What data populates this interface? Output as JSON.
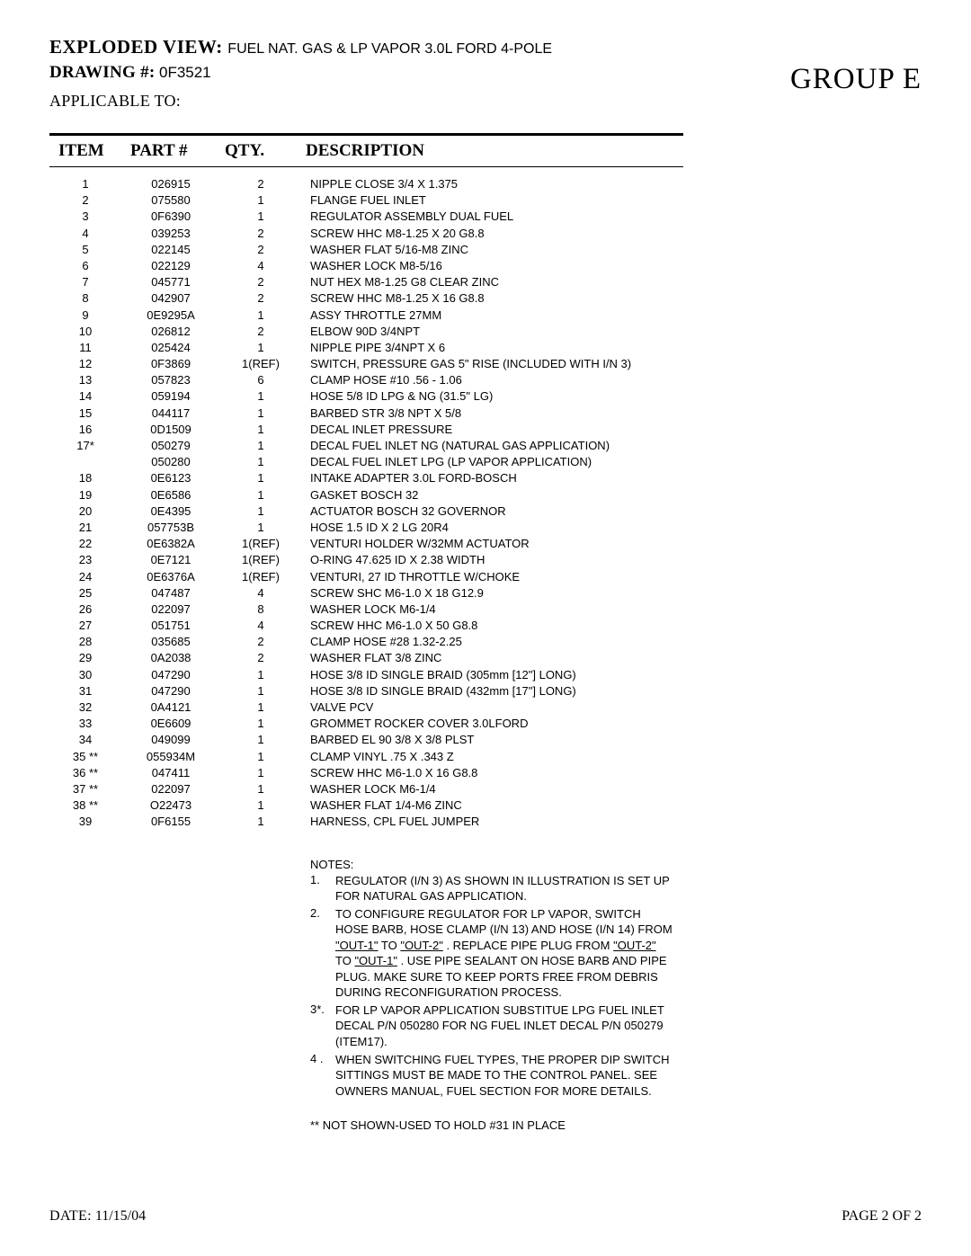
{
  "header": {
    "exploded_label": "EXPLODED VIEW:",
    "exploded_value": "FUEL NAT. GAS & LP VAPOR 3.0L FORD 4-POLE",
    "drawing_label": "DRAWING #:",
    "drawing_value": "0F3521",
    "applicable_label": "APPLICABLE TO:",
    "group_label": "GROUP  E"
  },
  "table": {
    "headers": {
      "item": "ITEM",
      "part": "PART #",
      "qty": "QTY.",
      "desc": "DESCRIPTION"
    },
    "rows": [
      {
        "item": "1",
        "part": "026915",
        "qty": "2",
        "desc": "NIPPLE CLOSE 3/4 X 1.375"
      },
      {
        "item": "2",
        "part": "075580",
        "qty": "1",
        "desc": "FLANGE FUEL INLET"
      },
      {
        "item": "3",
        "part": "0F6390",
        "qty": "1",
        "desc": "REGULATOR ASSEMBLY DUAL FUEL"
      },
      {
        "item": "4",
        "part": "039253",
        "qty": "2",
        "desc": "SCREW HHC M8-1.25 X 20 G8.8"
      },
      {
        "item": "5",
        "part": "022145",
        "qty": "2",
        "desc": "WASHER FLAT 5/16-M8 ZINC"
      },
      {
        "item": "6",
        "part": "022129",
        "qty": "4",
        "desc": "WASHER LOCK M8-5/16"
      },
      {
        "item": "7",
        "part": "045771",
        "qty": "2",
        "desc": "NUT HEX M8-1.25 G8 CLEAR ZINC"
      },
      {
        "item": "8",
        "part": "042907",
        "qty": "2",
        "desc": "SCREW HHC M8-1.25 X 16 G8.8"
      },
      {
        "item": "9",
        "part": "0E9295A",
        "qty": "1",
        "desc": "ASSY THROTTLE 27MM"
      },
      {
        "item": "10",
        "part": "026812",
        "qty": "2",
        "desc": "ELBOW 90D 3/4NPT"
      },
      {
        "item": "11",
        "part": "025424",
        "qty": "1",
        "desc": "NIPPLE PIPE 3/4NPT X 6"
      },
      {
        "item": "12",
        "part": "0F3869",
        "qty": "1(REF)",
        "desc": "SWITCH, PRESSURE GAS 5\"  RISE (INCLUDED WITH I/N 3)"
      },
      {
        "item": "13",
        "part": "057823",
        "qty": "6",
        "desc": "CLAMP HOSE #10 .56 - 1.06"
      },
      {
        "item": "14",
        "part": "059194",
        "qty": "1",
        "desc": "HOSE 5/8 ID LPG & NG (31.5\" LG)"
      },
      {
        "item": "15",
        "part": "044117",
        "qty": "1",
        "desc": "BARBED STR 3/8 NPT X 5/8"
      },
      {
        "item": "16",
        "part": "0D1509",
        "qty": "1",
        "desc": "DECAL INLET PRESSURE"
      },
      {
        "item": "17*",
        "part": "050279",
        "qty": "1",
        "desc": "DECAL FUEL INLET NG (NATURAL GAS APPLICATION)"
      },
      {
        "item": "",
        "part": "050280",
        "qty": "1",
        "desc": "DECAL FUEL INLET LPG (LP VAPOR APPLICATION)"
      },
      {
        "item": "18",
        "part": "0E6123",
        "qty": "1",
        "desc": "INTAKE ADAPTER 3.0L FORD-BOSCH"
      },
      {
        "item": "19",
        "part": "0E6586",
        "qty": "1",
        "desc": "GASKET BOSCH 32"
      },
      {
        "item": "20",
        "part": "0E4395",
        "qty": "1",
        "desc": "ACTUATOR BOSCH 32 GOVERNOR"
      },
      {
        "item": "21",
        "part": "057753B",
        "qty": "1",
        "desc": "HOSE 1.5 ID X 2 LG 20R4"
      },
      {
        "item": "22",
        "part": "0E6382A",
        "qty": "1(REF)",
        "desc": "VENTURI HOLDER W/32MM ACTUATOR"
      },
      {
        "item": "23",
        "part": "0E7121",
        "qty": "1(REF)",
        "desc": "O-RING 47.625 ID X 2.38 WIDTH"
      },
      {
        "item": "24",
        "part": "0E6376A",
        "qty": "1(REF)",
        "desc": "VENTURI, 27 ID THROTTLE W/CHOKE"
      },
      {
        "item": "25",
        "part": "047487",
        "qty": "4",
        "desc": "SCREW SHC M6-1.0 X 18 G12.9"
      },
      {
        "item": "26",
        "part": "022097",
        "qty": "8",
        "desc": "WASHER LOCK M6-1/4"
      },
      {
        "item": "27",
        "part": "051751",
        "qty": "4",
        "desc": "SCREW HHC M6-1.0 X 50 G8.8"
      },
      {
        "item": "28",
        "part": "035685",
        "qty": "2",
        "desc": "CLAMP HOSE #28 1.32-2.25"
      },
      {
        "item": "29",
        "part": "0A2038",
        "qty": "2",
        "desc": "WASHER FLAT 3/8 ZINC"
      },
      {
        "item": "30",
        "part": "047290",
        "qty": "1",
        "desc": "HOSE 3/8 ID SINGLE BRAID (305mm [12\"] LONG)"
      },
      {
        "item": "31",
        "part": "047290",
        "qty": "1",
        "desc": "HOSE 3/8 ID SINGLE BRAID (432mm [17\"] LONG)"
      },
      {
        "item": "32",
        "part": "0A4121",
        "qty": "1",
        "desc": "VALVE PCV"
      },
      {
        "item": "33",
        "part": "0E6609",
        "qty": "1",
        "desc": "GROMMET ROCKER COVER 3.0LFORD"
      },
      {
        "item": "34",
        "part": "049099",
        "qty": "1",
        "desc": "BARBED EL 90 3/8 X 3/8 PLST"
      },
      {
        "item": "35 **",
        "part": "055934M",
        "qty": "1",
        "desc": "CLAMP VINYL .75 X .343 Z"
      },
      {
        "item": "36 **",
        "part": "047411",
        "qty": "1",
        "desc": "SCREW HHC M6-1.0 X 16 G8.8"
      },
      {
        "item": "37 **",
        "part": "022097",
        "qty": "1",
        "desc": "WASHER LOCK M6-1/4"
      },
      {
        "item": "38 **",
        "part": "O22473",
        "qty": "1",
        "desc": "WASHER FLAT 1/4-M6 ZINC"
      },
      {
        "item": "39",
        "part": "0F6155",
        "qty": "1",
        "desc": "HARNESS, CPL FUEL JUMPER"
      }
    ]
  },
  "notes": {
    "title": "NOTES:",
    "items": [
      {
        "num": "1.",
        "text": "REGULATOR (I/N 3) AS SHOWN IN ILLUSTRATION IS SET UP FOR NATURAL GAS APPLICATION."
      },
      {
        "num": "2.",
        "parts": [
          "TO CONFIGURE REGULATOR FOR LP VAPOR, SWITCH HOSE BARB, HOSE CLAMP (I/N 13) AND HOSE (I/N 14) FROM ",
          {
            "u": "\"OUT-1\""
          },
          "  TO ",
          {
            "u": "\"OUT-2\""
          },
          " . REPLACE PIPE PLUG FROM ",
          {
            "u": "\"OUT-2\""
          },
          "  TO ",
          {
            "u": "\"OUT-1\""
          },
          " .  USE PIPE SEALANT ON HOSE BARB AND PIPE PLUG. MAKE SURE TO KEEP PORTS FREE FROM DEBRIS DURING RECONFIGURATION PROCESS."
        ]
      },
      {
        "num": "3*.",
        "text": "FOR LP VAPOR APPLICATION SUBSTITUE LPG FUEL INLET DECAL P/N 050280 FOR NG FUEL INLET DECAL P/N 050279 (ITEM17)."
      },
      {
        "num": "4 .",
        "text": "WHEN SWITCHING FUEL TYPES, THE PROPER DIP SWITCH SITTINGS MUST BE MADE TO THE CONTROL PANEL. SEE OWNERS MANUAL, FUEL SECTION FOR MORE DETAILS."
      }
    ],
    "asterisk": "** NOT SHOWN-USED TO HOLD #31 IN PLACE"
  },
  "footer": {
    "date_label": "DATE:",
    "date_value": "11/15/04",
    "page": "PAGE 2 OF 2"
  }
}
